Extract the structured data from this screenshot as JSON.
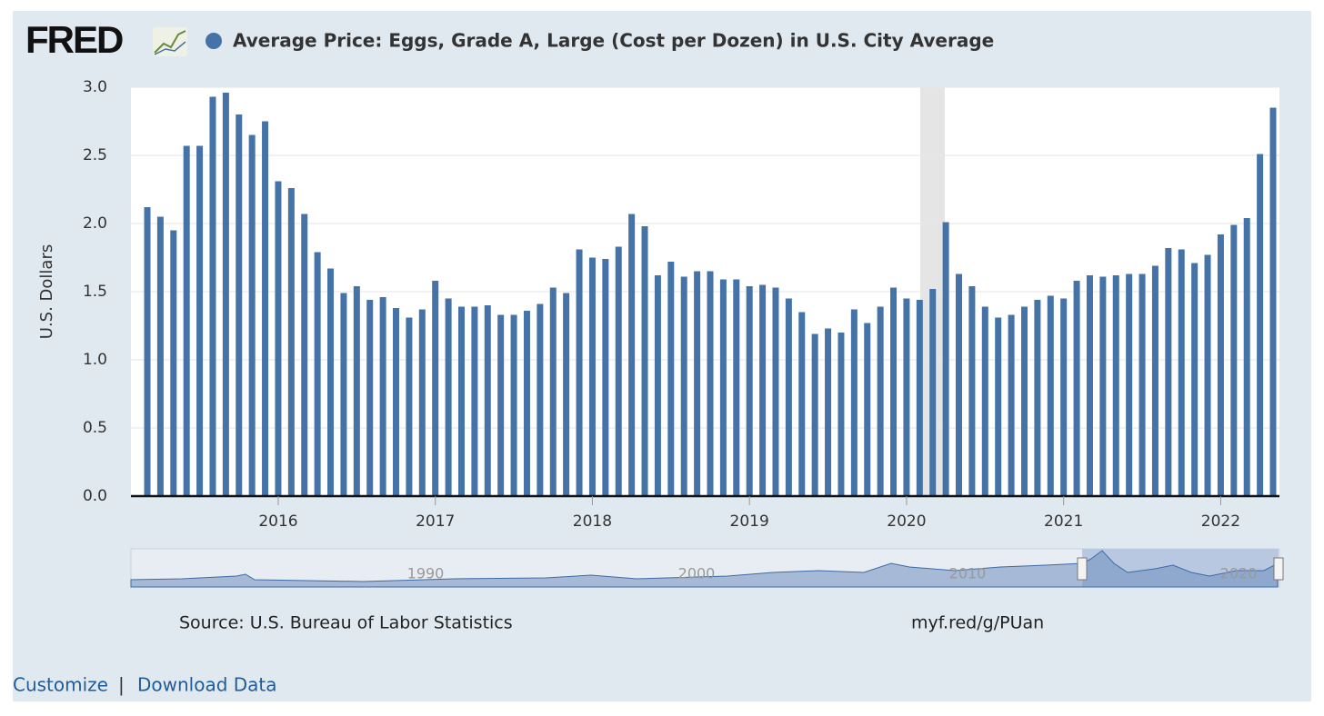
{
  "logo": "FRED",
  "chart_data": {
    "type": "bar",
    "title": "Average Price: Eggs, Grade A, Large (Cost per Dozen) in U.S. City Average",
    "y_label": "U.S. Dollars",
    "color": "#4572a7",
    "grid": true,
    "categories": [
      null,
      null,
      null,
      null,
      null,
      null,
      null,
      null,
      null,
      null,
      "2016",
      null,
      null,
      null,
      null,
      null,
      null,
      null,
      null,
      null,
      null,
      null,
      "2017",
      null,
      null,
      null,
      null,
      null,
      null,
      null,
      null,
      null,
      null,
      null,
      "2018",
      null,
      null,
      null,
      null,
      null,
      null,
      null,
      null,
      null,
      null,
      null,
      "2019",
      null,
      null,
      null,
      null,
      null,
      null,
      null,
      null,
      null,
      null,
      null,
      "2020",
      null,
      null,
      null,
      null,
      null,
      null,
      null,
      null,
      null,
      null,
      null,
      "2021",
      null,
      null,
      null,
      null,
      null,
      null,
      null,
      null,
      null,
      null,
      null,
      "2022",
      null,
      null,
      null,
      null
    ],
    "values": [
      2.12,
      2.05,
      1.95,
      2.57,
      2.57,
      2.93,
      2.96,
      2.8,
      2.65,
      2.75,
      2.31,
      2.26,
      2.07,
      1.79,
      1.67,
      1.49,
      1.54,
      1.44,
      1.46,
      1.38,
      1.31,
      1.37,
      1.58,
      1.45,
      1.39,
      1.39,
      1.4,
      1.33,
      1.33,
      1.36,
      1.41,
      1.53,
      1.49,
      1.81,
      1.75,
      1.74,
      1.83,
      2.07,
      1.98,
      1.62,
      1.72,
      1.61,
      1.65,
      1.65,
      1.59,
      1.59,
      1.54,
      1.55,
      1.53,
      1.45,
      1.35,
      1.19,
      1.23,
      1.2,
      1.37,
      1.27,
      1.39,
      1.53,
      1.45,
      1.44,
      1.52,
      2.01,
      1.63,
      1.54,
      1.39,
      1.31,
      1.33,
      1.39,
      1.44,
      1.47,
      1.45,
      1.58,
      1.62,
      1.61,
      1.62,
      1.63,
      1.63,
      1.69,
      1.82,
      1.81,
      1.71,
      1.77,
      1.92,
      1.99,
      2.04,
      2.51,
      2.85
    ],
    "ylim": [
      0,
      3
    ],
    "yticks": [
      {
        "value": 0,
        "label": "0.0"
      },
      0.5,
      {
        "value": 1,
        "label": "1.0"
      },
      1.5,
      {
        "value": 2,
        "label": "2.0"
      },
      2.5,
      {
        "value": 3,
        "label": "3.0"
      }
    ]
  },
  "navigator": {
    "labels": [
      "1990",
      "2000",
      "2010",
      "2020"
    ]
  },
  "source": "Source: U.S. Bureau of Labor Statistics",
  "short_url": "myf.red/g/PUan",
  "links": [
    "Customize",
    "|",
    "Download Data"
  ]
}
